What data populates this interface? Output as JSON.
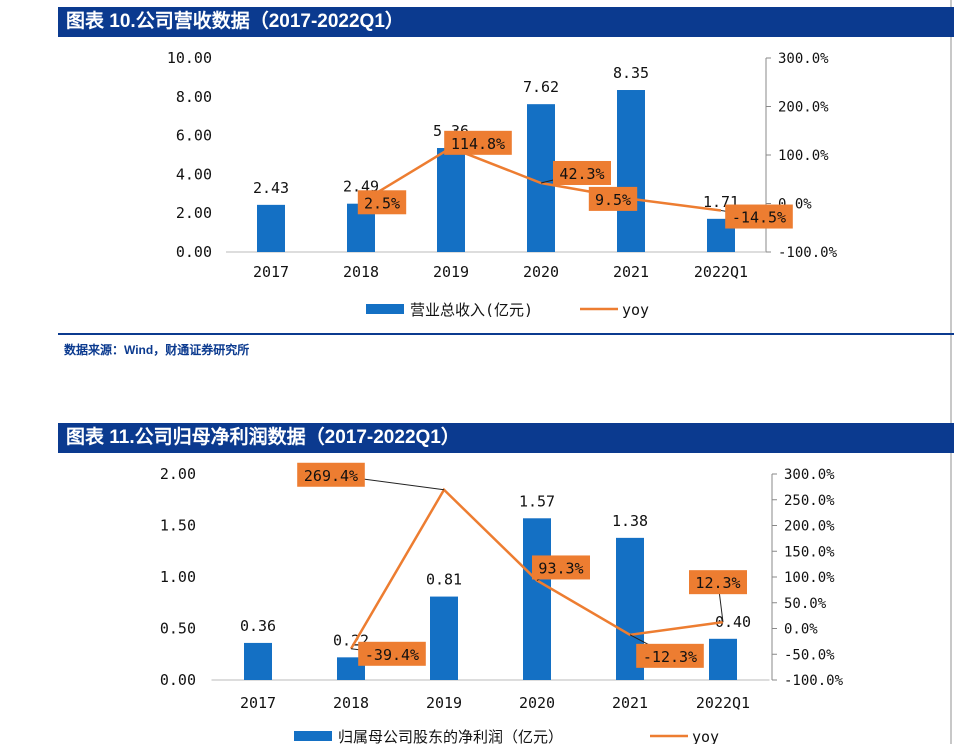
{
  "charts": [
    {
      "header": "图表 10.公司营收数据（2017-2022Q1）",
      "source": "数据来源：Wind，财通证券研究所",
      "legend": {
        "bar_label": "营业总收入(亿元)",
        "line_label": "yoy"
      },
      "left_ticks": [
        "0.00",
        "2.00",
        "4.00",
        "6.00",
        "8.00",
        "10.00"
      ],
      "right_ticks": [
        "-100.0%",
        "0.0%",
        "100.0%",
        "200.0%",
        "300.0%"
      ],
      "bar_labels": [
        "2.43",
        "2.49",
        "5.36",
        "7.62",
        "8.35",
        "1.71"
      ],
      "yoy_labels": [
        "2.5%",
        "114.8%",
        "42.3%",
        "9.5%",
        "-14.5%"
      ],
      "colors": {
        "bar": "#1470c4",
        "line": "#ed7d31",
        "label_bg": "#ed7d31"
      }
    },
    {
      "header": "图表 11.公司归母净利润数据（2017-2022Q1）",
      "legend": {
        "bar_label": "归属母公司股东的净利润（亿元）",
        "line_label": "yoy"
      },
      "left_ticks": [
        "0.00",
        "0.50",
        "1.00",
        "1.50",
        "2.00"
      ],
      "right_ticks": [
        "-100.0%",
        "-50.0%",
        "0.0%",
        "50.0%",
        "100.0%",
        "150.0%",
        "200.0%",
        "250.0%",
        "300.0%"
      ],
      "bar_labels": [
        "0.36",
        "0.22",
        "0.81",
        "1.57",
        "1.38",
        "0.40"
      ],
      "yoy_labels": [
        "-39.4%",
        "269.4%",
        "93.3%",
        "-12.3%",
        "12.3%"
      ],
      "colors": {
        "bar": "#1470c4",
        "line": "#ed7d31",
        "label_bg": "#ed7d31"
      }
    }
  ],
  "chart_data": [
    {
      "type": "bar",
      "title": "图表 10.公司营收数据（2017-2022Q1）",
      "categories": [
        "2017",
        "2018",
        "2019",
        "2020",
        "2021",
        "2022Q1"
      ],
      "series": [
        {
          "name": "营业总收入(亿元)",
          "axis": "left",
          "values": [
            2.43,
            2.49,
            5.36,
            7.62,
            8.35,
            1.71
          ]
        },
        {
          "name": "yoy",
          "axis": "right",
          "type": "line",
          "x": [
            "2018",
            "2019",
            "2020",
            "2021",
            "2022Q1"
          ],
          "values": [
            2.5,
            114.8,
            42.3,
            9.5,
            -14.5
          ]
        }
      ],
      "ylim_left": [
        0,
        10
      ],
      "ylim_right": [
        -100,
        300
      ],
      "legend": "bottom"
    },
    {
      "type": "bar",
      "title": "图表 11.公司归母净利润数据（2017-2022Q1）",
      "categories": [
        "2017",
        "2018",
        "2019",
        "2020",
        "2021",
        "2022Q1"
      ],
      "series": [
        {
          "name": "归属母公司股东的净利润（亿元）",
          "axis": "left",
          "values": [
            0.36,
            0.22,
            0.81,
            1.57,
            1.38,
            0.4
          ]
        },
        {
          "name": "yoy",
          "axis": "right",
          "type": "line",
          "x": [
            "2018",
            "2019",
            "2020",
            "2021",
            "2022Q1"
          ],
          "values": [
            -39.4,
            269.4,
            93.3,
            -12.3,
            12.3
          ]
        }
      ],
      "ylim_left": [
        0,
        2
      ],
      "ylim_right": [
        -100,
        300
      ],
      "legend": "bottom"
    }
  ]
}
